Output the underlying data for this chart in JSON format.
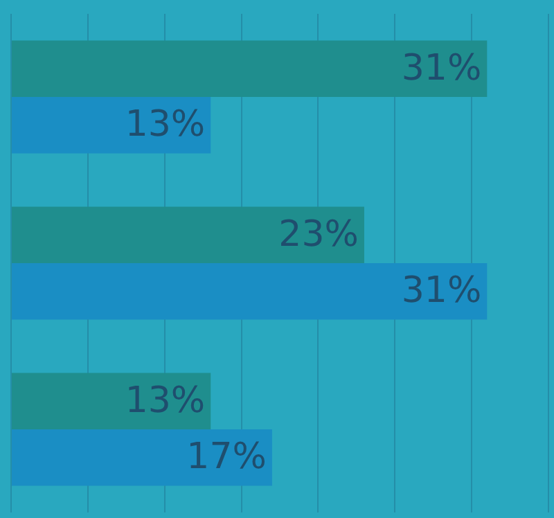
{
  "chart_data": {
    "type": "bar",
    "orientation": "horizontal",
    "categories": [
      null,
      null,
      null
    ],
    "series": [
      {
        "color": "#1f8e8e",
        "values": [
          31,
          23,
          13
        ],
        "value_labels": [
          "31%",
          "23%",
          "13%"
        ]
      },
      {
        "color": "#1a8ec4",
        "values": [
          13,
          31,
          17
        ],
        "value_labels": [
          "13%",
          "31%",
          "17%"
        ]
      }
    ],
    "xlim": [
      0,
      35
    ],
    "xticks": [
      0,
      5,
      10,
      15,
      20,
      25,
      30,
      35
    ],
    "tick_labels": false,
    "grid": "x",
    "legend": false
  }
}
